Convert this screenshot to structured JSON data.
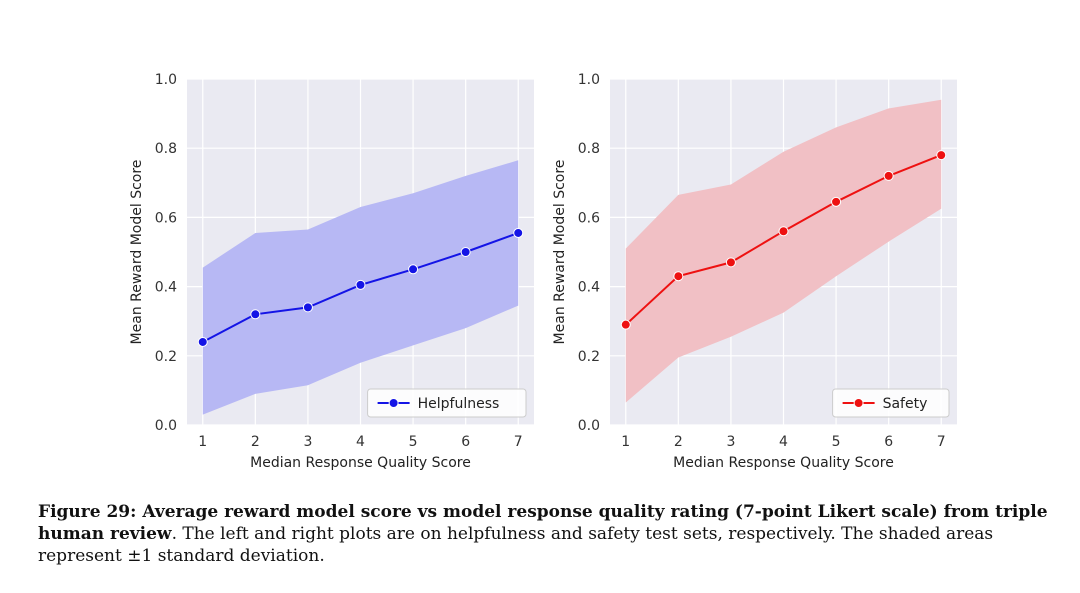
{
  "chart_data": [
    {
      "type": "line",
      "x": [
        1,
        2,
        3,
        4,
        5,
        6,
        7
      ],
      "series": [
        {
          "name": "Helpfulness",
          "values": [
            0.24,
            0.32,
            0.34,
            0.405,
            0.45,
            0.5,
            0.555
          ],
          "lower": [
            0.03,
            0.09,
            0.115,
            0.18,
            0.23,
            0.28,
            0.345
          ],
          "upper": [
            0.455,
            0.555,
            0.565,
            0.63,
            0.67,
            0.72,
            0.765
          ],
          "color": "#1414e6",
          "band_color": "#b7b8f4"
        }
      ],
      "xlabel": "Median Response Quality Score",
      "ylabel": "Mean Reward Model Score",
      "xticks": [
        "1",
        "2",
        "3",
        "4",
        "5",
        "6",
        "7"
      ],
      "yticks": [
        "0.0",
        "0.2",
        "0.4",
        "0.6",
        "0.8",
        "1.0"
      ],
      "ylim": [
        0,
        1
      ],
      "xlim": [
        0.7,
        7.3
      ],
      "grid": true,
      "legend": "bottom-right"
    },
    {
      "type": "line",
      "x": [
        1,
        2,
        3,
        4,
        5,
        6,
        7
      ],
      "series": [
        {
          "name": "Safety",
          "values": [
            0.29,
            0.43,
            0.47,
            0.56,
            0.645,
            0.72,
            0.78
          ],
          "lower": [
            0.065,
            0.195,
            0.255,
            0.325,
            0.43,
            0.53,
            0.625
          ],
          "upper": [
            0.51,
            0.665,
            0.695,
            0.79,
            0.86,
            0.915,
            0.94
          ],
          "color": "#ee1111",
          "band_color": "#f1c0c5"
        }
      ],
      "xlabel": "Median Response Quality Score",
      "ylabel": "Mean Reward Model Score",
      "xticks": [
        "1",
        "2",
        "3",
        "4",
        "5",
        "6",
        "7"
      ],
      "yticks": [
        "0.0",
        "0.2",
        "0.4",
        "0.6",
        "0.8",
        "1.0"
      ],
      "ylim": [
        0,
        1
      ],
      "xlim": [
        0.7,
        7.3
      ],
      "grid": true,
      "legend": "bottom-right"
    }
  ],
  "caption": {
    "bold": "Figure 29: Average reward model score vs model response quality rating (7-point Likert scale) from triple human review",
    "rest": ". The left and right plots are on helpfulness and safety test sets, respectively. The shaded areas represent ±1 standard deviation."
  }
}
